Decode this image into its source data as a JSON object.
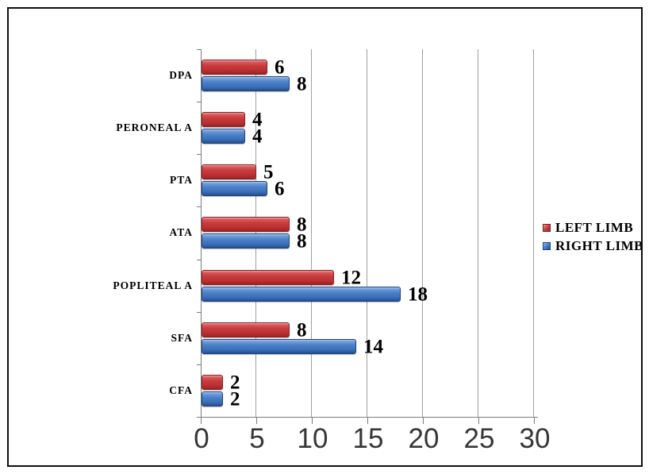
{
  "chart_data": {
    "type": "bar",
    "orientation": "horizontal",
    "title": "",
    "xlabel": "",
    "ylabel": "",
    "categories_top_to_bottom": [
      "DPA",
      "PERONEAL A",
      "PTA",
      "ATA",
      "POPLITEAL A",
      "SFA",
      "CFA"
    ],
    "series": [
      {
        "name": "LEFT LIMB",
        "color": "#c23a3c",
        "values": [
          6,
          4,
          5,
          8,
          12,
          8,
          2
        ]
      },
      {
        "name": "RIGHT LIMB",
        "color": "#3f74bb",
        "values": [
          8,
          4,
          6,
          8,
          18,
          14,
          2
        ]
      }
    ],
    "data_labels_shown": true,
    "xticks": [
      0,
      5,
      10,
      15,
      20,
      25,
      30
    ],
    "xlim": [
      0,
      30
    ],
    "grid": "vertical-major",
    "legend_position": "right"
  },
  "legend": {
    "items": [
      {
        "label": "LEFT LIMB",
        "color": "#c23a3c"
      },
      {
        "label": "RIGHT LIMB",
        "color": "#3f74bb"
      }
    ]
  },
  "colors": {
    "background": "#ffffff",
    "frame_border": "#0e0e0e",
    "gridline": "#a0a0a0",
    "axis": "#7d7d7d",
    "tick_label": "#363636",
    "text": "#000000"
  }
}
